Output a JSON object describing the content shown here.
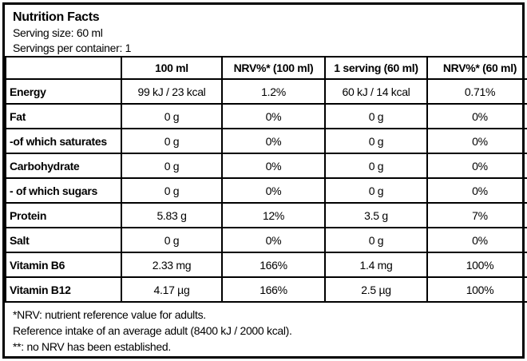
{
  "header": {
    "title": "Nutrition Facts",
    "serving_size": "Serving size: 60 ml",
    "servings_per_container": "Servings per container: 1"
  },
  "table": {
    "columns": [
      "",
      "100 ml",
      "NRV%* (100 ml)",
      "1 serving (60 ml)",
      "NRV%* (60 ml)"
    ],
    "rows": [
      {
        "label": "Energy",
        "values": [
          "99 kJ / 23 kcal",
          "1.2%",
          "60 kJ / 14 kcal",
          "0.71%"
        ]
      },
      {
        "label": "Fat",
        "values": [
          "0 g",
          "0%",
          "0 g",
          "0%"
        ]
      },
      {
        "label": "-of which saturates",
        "values": [
          "0 g",
          "0%",
          "0 g",
          "0%"
        ]
      },
      {
        "label": "Carbohydrate",
        "values": [
          "0 g",
          "0%",
          "0 g",
          "0%"
        ]
      },
      {
        "label": "- of which sugars",
        "values": [
          "0 g",
          "0%",
          "0 g",
          "0%"
        ]
      },
      {
        "label": "Protein",
        "values": [
          "5.83 g",
          "12%",
          "3.5 g",
          "7%"
        ]
      },
      {
        "label": "Salt",
        "values": [
          "0 g",
          "0%",
          "0 g",
          "0%"
        ]
      },
      {
        "label": "Vitamin B6",
        "values": [
          "2.33 mg",
          "166%",
          "1.4 mg",
          "100%"
        ]
      },
      {
        "label": "Vitamin B12",
        "values": [
          "4.17 µg",
          "166%",
          "2.5 µg",
          "100%"
        ]
      }
    ]
  },
  "footnotes": {
    "nrv": "*NRV: nutrient reference value for adults.",
    "reference_intake": "Reference intake of an average adult (8400 kJ / 2000 kcal).",
    "no_nrv": "**: no NRV has been established."
  },
  "colors": {
    "border": "#000000",
    "background": "#ffffff",
    "text": "#000000"
  }
}
